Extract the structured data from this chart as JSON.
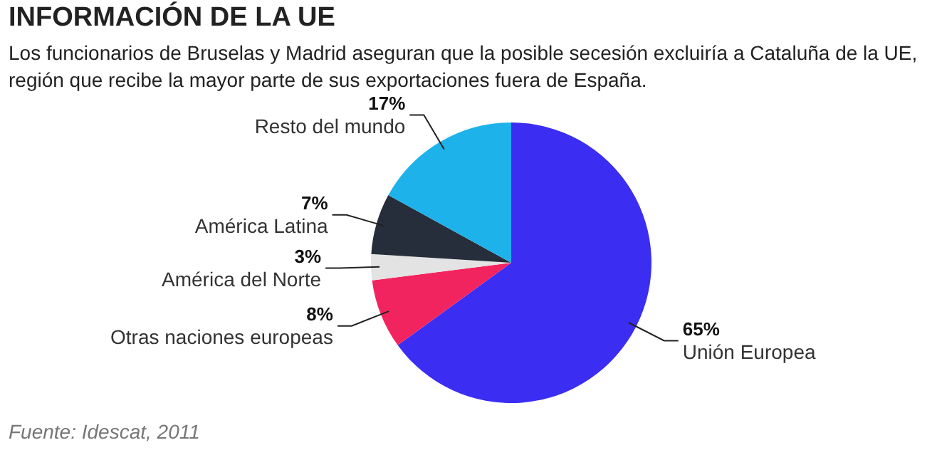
{
  "chart_data": {
    "type": "pie",
    "title": "INFORMACIÓN DE LA UE",
    "subtitle": "Los funcionarios de Bruselas y Madrid aseguran que la posible secesión excluiría a Cataluña de la UE, región que recibe la mayor parte de sus exportaciones fuera de España.",
    "categories": [
      "Unión Europea",
      "Otras naciones europeas",
      "América del Norte",
      "América Latina",
      "Resto del mundo"
    ],
    "values": [
      65,
      8,
      3,
      7,
      17
    ],
    "colors": [
      "#3b2ef2",
      "#f2245f",
      "#e3e3e3",
      "#262e3b",
      "#1eb2ea"
    ],
    "value_labels": [
      "65%",
      "8%",
      "3%",
      "7%",
      "17%"
    ],
    "legend": false,
    "annotations": [
      "Fuente: Idescat, 2011"
    ]
  }
}
